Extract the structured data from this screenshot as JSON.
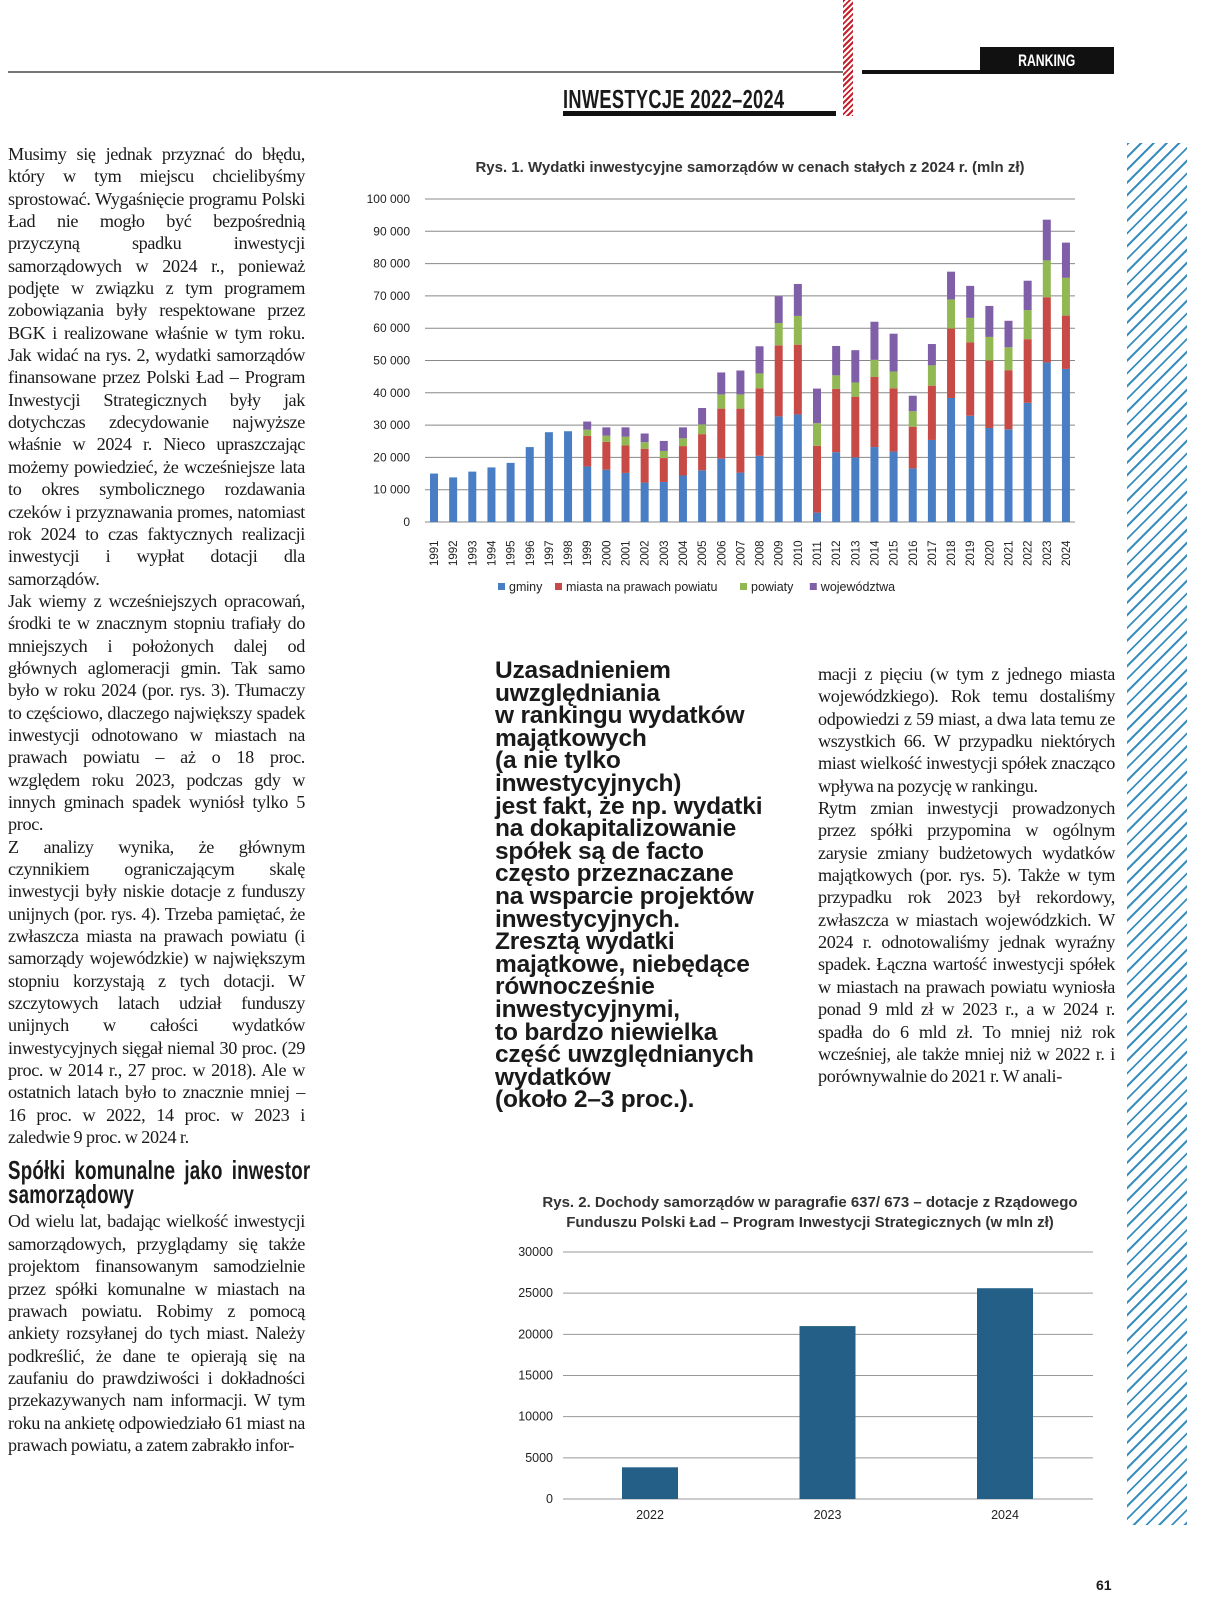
{
  "header": {
    "section_tag": "RANKING",
    "title": "INWESTYCJE 2022–2024"
  },
  "left_column": {
    "paragraphs": [
      "Musimy się jednak przyznać do błędu, który w tym miejscu chcielibyśmy sprostować. Wygaśnięcie programu Polski Ład nie mogło być bezpośrednią przyczyną spadku inwestycji samorządowych w 2024 r., ponieważ podjęte w związku z tym programem zobowiązania były respektowane przez BGK i realizowane właśnie w tym roku. Jak widać na rys. 2, wydatki samorządów finansowane przez Polski Ład – Program Inwestycji Strategicznych były jak dotychczas zdecydowanie najwyższe właśnie w 2024 r. Nieco upraszczając możemy powiedzieć, że wcześniejsze lata to okres symbolicznego rozdawania czeków i przyznawania promes, natomiast rok 2024 to czas faktycznych realizacji inwestycji i wypłat dotacji dla samorządów.",
      "Jak wiemy z wcześniejszych opracowań, środki te w znacznym stopniu trafiały do mniejszych i położonych dalej od głównych aglomeracji gmin. Tak samo było w roku 2024 (por. rys. 3). Tłumaczy to częściowo, dlaczego największy spadek inwestycji odnotowano w miastach na prawach powiatu – aż o 18 proc. względem roku 2023, podczas gdy w innych gminach spadek wyniósł tylko 5 proc.",
      "Z analizy wynika, że głównym czynnikiem ograniczającym skalę inwestycji były niskie dotacje z funduszy unijnych (por. rys. 4). Trzeba pamiętać, że zwłaszcza miasta na prawach powiatu (i samorządy wojewódzkie) w największym stopniu korzystają z tych dotacji. W szczytowych latach udział funduszy unijnych w całości wydatków inwestycyjnych sięgał niemal 30 proc. (29 proc. w 2014 r., 27 proc. w 2018). Ale w ostatnich latach było to znacznie mniej – 16 proc. w 2022, 14 proc. w 2023 i zaledwie 9 proc. w 2024 r."
    ],
    "subheading": "Spółki komunalne jako inwestor samorządowy",
    "paragraph_after": "Od wielu lat, badając wielkość inwestycji samorządowych, przyglądamy się także projektom finansowanym samodzielnie przez spółki komunalne w miastach na prawach powiatu. Robimy z pomocą ankiety rozsyłanej do tych miast. Należy podkreślić, że dane te opierają się na zaufaniu do prawdziwości i dokładności przekazywanych nam informacji. W tym roku na ankietę odpowiedziało 61 miast na prawach powiatu, a zatem zabrakło infor-"
  },
  "right_column": {
    "paragraphs": [
      "macji z pięciu (w tym z jednego miasta wojewódzkiego). Rok temu dostaliśmy odpowiedzi z 59 miast, a dwa lata temu ze wszystkich 66. W przypadku niektórych miast wielkość inwestycji spółek znacząco wpływa na pozycję w rankingu.",
      "Rytm zmian inwestycji prowadzonych przez spółki przypomina w ogólnym zarysie zmiany budżetowych wydatków majątkowych (por. rys. 5). Także w tym przypadku rok 2023 był rekordowy, zwłaszcza w miastach wojewódzkich. W 2024 r. odnotowaliśmy jednak wyraźny spadek. Łączna wartość inwestycji spółek w miastach na prawach powiatu wyniosła ponad 9 mld zł w 2023 r., a w 2024 r. spadła do 6 mld zł. To mniej niż rok wcześniej, ale także mniej niż w 2022 r. i porównywalnie do 2021 r. W anali-"
    ]
  },
  "pull_quote": {
    "lines": [
      "Uzasadnieniem",
      "uwzględniania",
      "w rankingu wydatków",
      "majątkowych",
      "(a nie tylko",
      "inwestycyjnych)",
      "jest fakt, że np. wydatki",
      "na dokapitalizowanie",
      "spółek są de facto",
      "często przeznaczane",
      "na wsparcie projektów",
      "inwestycyjnych.",
      "Zresztą wydatki",
      "majątkowe, niebędące",
      "równocześnie",
      "inwestycyjnymi,",
      "to bardzo niewielka",
      "część uwzględnianych",
      "wydatków",
      "(około 2–3 proc.)."
    ]
  },
  "page_number": "61",
  "chart_data": [
    {
      "type": "bar",
      "stacked": true,
      "title": "Rys. 1. Wydatki inwestycyjne samorządów w cenach stałych z 2024 r. (mln zł)",
      "ylim": [
        0,
        100000
      ],
      "yticks": [
        "0",
        "10 000",
        "20 000",
        "30 000",
        "40 000",
        "50 000",
        "60 000",
        "70 000",
        "80 000",
        "90 000",
        "100 000"
      ],
      "grid": true,
      "legend": "bottom",
      "categories": [
        "1991",
        "1992",
        "1993",
        "1994",
        "1995",
        "1996",
        "1997",
        "1998",
        "1999",
        "2000",
        "2001",
        "2002",
        "2003",
        "2004",
        "2005",
        "2006",
        "2007",
        "2008",
        "2009",
        "2010",
        "2011",
        "2012",
        "2013",
        "2014",
        "2015",
        "2016",
        "2017",
        "2018",
        "2019",
        "2020",
        "2021",
        "2022",
        "2023",
        "2024"
      ],
      "series": [
        {
          "name": "gminy",
          "color": "#4a7ec4",
          "values": [
            15000,
            13800,
            15600,
            16900,
            18300,
            23200,
            27800,
            28100,
            17200,
            16200,
            15200,
            12200,
            12400,
            14400,
            16000,
            19600,
            15300,
            20500,
            32700,
            33300,
            2900,
            21600,
            20000,
            23200,
            21800,
            16600,
            25400,
            38400,
            32900,
            29100,
            28700,
            36900,
            49400,
            47400
          ]
        },
        {
          "name": "miasta na prawach powiatu",
          "color": "#c84a46",
          "values": [
            0,
            0,
            0,
            0,
            0,
            0,
            0,
            0,
            9500,
            8600,
            8500,
            10500,
            7400,
            9100,
            11200,
            15500,
            19800,
            20900,
            22000,
            21600,
            20700,
            19600,
            18800,
            21700,
            19600,
            12900,
            16800,
            21500,
            22700,
            20900,
            18300,
            19700,
            20200,
            16500
          ]
        },
        {
          "name": "powiaty",
          "color": "#92b853",
          "values": [
            0,
            0,
            0,
            0,
            0,
            0,
            0,
            0,
            1900,
            1900,
            2700,
            2000,
            2200,
            2400,
            3000,
            4400,
            4400,
            4600,
            6900,
            8900,
            7000,
            4200,
            4400,
            5300,
            5200,
            4800,
            6300,
            9000,
            7600,
            7300,
            7100,
            9000,
            11400,
            11700
          ]
        },
        {
          "name": "województwa",
          "color": "#7f5fa8",
          "values": [
            0,
            0,
            0,
            0,
            0,
            0,
            0,
            0,
            2500,
            2600,
            2900,
            2700,
            3100,
            3400,
            5100,
            6800,
            7400,
            8400,
            8300,
            9900,
            10700,
            9100,
            10000,
            11800,
            11700,
            4800,
            6600,
            8600,
            9900,
            9600,
            8200,
            9100,
            12600,
            10900
          ]
        }
      ]
    },
    {
      "type": "bar",
      "title": "Rys. 2. Dochody samorządów w paragrafie 637/ 673 – dotacje z Rządowego Funduszu Polski Ład – Program Inwestycji Strategicznych (w mln zł)",
      "ylim": [
        0,
        30000
      ],
      "yticks": [
        "0",
        "5000",
        "10000",
        "15000",
        "20000",
        "25000",
        "30000"
      ],
      "grid": true,
      "color": "#235f87",
      "categories": [
        "2022",
        "2023",
        "2024"
      ],
      "values": [
        3850,
        21000,
        25600
      ]
    }
  ]
}
